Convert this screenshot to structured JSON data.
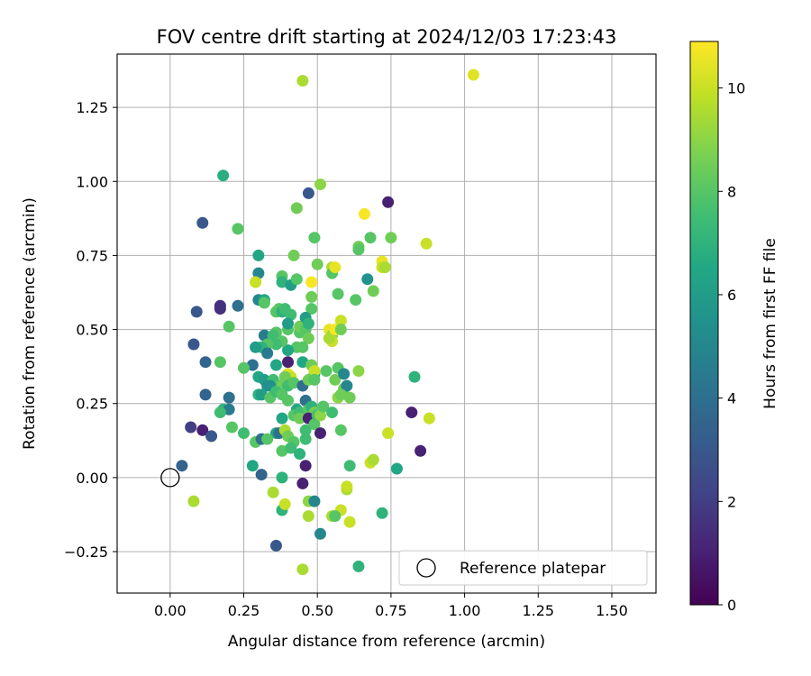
{
  "chart_data": {
    "type": "scatter",
    "title": "FOV centre drift starting at 2024/12/03 17:23:43",
    "xlabel": "Angular distance from reference (arcmin)",
    "ylabel": "Rotation from reference (arcmin)",
    "xlim": [
      -0.18,
      1.65
    ],
    "ylim": [
      -0.39,
      1.43
    ],
    "xticks": [
      0.0,
      0.25,
      0.5,
      0.75,
      1.0,
      1.25,
      1.5
    ],
    "xtick_labels": [
      "0.00",
      "0.25",
      "0.50",
      "0.75",
      "1.00",
      "1.25",
      "1.50"
    ],
    "yticks": [
      -0.25,
      0.0,
      0.25,
      0.5,
      0.75,
      1.0,
      1.25
    ],
    "ytick_labels": [
      "−0.25",
      "0.00",
      "0.25",
      "0.50",
      "0.75",
      "1.00",
      "1.25"
    ],
    "grid": true,
    "legend": {
      "placement": "lower-right",
      "entries": [
        "Reference platepar"
      ]
    },
    "reference_point": {
      "x": 0.0,
      "y": 0.0
    },
    "colorbar": {
      "label": "Hours from first FF file",
      "colormap": "viridis",
      "range": [
        0,
        10.9
      ],
      "ticks": [
        0,
        2,
        4,
        6,
        8,
        10
      ],
      "tick_labels": [
        "0",
        "2",
        "4",
        "6",
        "8",
        "10"
      ]
    },
    "series": [
      {
        "marker": "filled-circle",
        "points": [
          [
            0.45,
            1.34,
            9.5
          ],
          [
            1.03,
            1.36,
            10.4
          ],
          [
            0.18,
            1.02,
            6.8
          ],
          [
            0.47,
            0.96,
            3.0
          ],
          [
            0.51,
            0.99,
            9.0
          ],
          [
            0.74,
            0.93,
            1.0
          ],
          [
            0.43,
            0.91,
            8.5
          ],
          [
            0.11,
            0.86,
            3.0
          ],
          [
            0.23,
            0.84,
            8.0
          ],
          [
            0.66,
            0.89,
            10.8
          ],
          [
            0.3,
            0.75,
            6.5
          ],
          [
            0.42,
            0.75,
            8.5
          ],
          [
            0.49,
            0.81,
            8.0
          ],
          [
            0.64,
            0.78,
            8.5
          ],
          [
            0.64,
            0.77,
            8.0
          ],
          [
            0.68,
            0.81,
            8.0
          ],
          [
            0.75,
            0.81,
            8.5
          ],
          [
            0.87,
            0.79,
            10.0
          ],
          [
            0.3,
            0.69,
            5.0
          ],
          [
            0.38,
            0.68,
            8.0
          ],
          [
            0.38,
            0.66,
            7.0
          ],
          [
            0.41,
            0.65,
            6.0
          ],
          [
            0.43,
            0.67,
            8.0
          ],
          [
            0.29,
            0.66,
            10.0
          ],
          [
            0.48,
            0.66,
            10.8
          ],
          [
            0.5,
            0.72,
            8.5
          ],
          [
            0.55,
            0.71,
            9.5
          ],
          [
            0.55,
            0.69,
            8.0
          ],
          [
            0.56,
            0.71,
            10.5
          ],
          [
            0.72,
            0.73,
            10.5
          ],
          [
            0.72,
            0.71,
            10.0
          ],
          [
            0.73,
            0.71,
            9.5
          ],
          [
            0.67,
            0.67,
            5.5
          ],
          [
            0.69,
            0.63,
            8.5
          ],
          [
            0.17,
            0.58,
            1.5
          ],
          [
            0.17,
            0.57,
            1.5
          ],
          [
            0.09,
            0.56,
            3.0
          ],
          [
            0.23,
            0.58,
            4.0
          ],
          [
            0.3,
            0.6,
            5.0
          ],
          [
            0.32,
            0.6,
            6.5
          ],
          [
            0.32,
            0.59,
            8.0
          ],
          [
            0.36,
            0.56,
            8.0
          ],
          [
            0.37,
            0.57,
            8.0
          ],
          [
            0.38,
            0.56,
            7.0
          ],
          [
            0.39,
            0.57,
            7.5
          ],
          [
            0.41,
            0.55,
            7.5
          ],
          [
            0.48,
            0.57,
            8.0
          ],
          [
            0.48,
            0.61,
            8.5
          ],
          [
            0.57,
            0.62,
            8.0
          ],
          [
            0.63,
            0.6,
            8.0
          ],
          [
            0.2,
            0.51,
            8.0
          ],
          [
            0.08,
            0.45,
            3.0
          ],
          [
            0.36,
            0.49,
            8.0
          ],
          [
            0.32,
            0.48,
            4.5
          ],
          [
            0.35,
            0.48,
            7.5
          ],
          [
            0.4,
            0.5,
            8.0
          ],
          [
            0.4,
            0.52,
            6.0
          ],
          [
            0.44,
            0.49,
            8.0
          ],
          [
            0.44,
            0.51,
            8.5
          ],
          [
            0.46,
            0.5,
            8.0
          ],
          [
            0.46,
            0.54,
            6.0
          ],
          [
            0.47,
            0.52,
            7.0
          ],
          [
            0.54,
            0.5,
            10.5
          ],
          [
            0.55,
            0.48,
            9.0
          ],
          [
            0.55,
            0.46,
            10.0
          ],
          [
            0.54,
            0.47,
            9.5
          ],
          [
            0.56,
            0.5,
            10.8
          ],
          [
            0.58,
            0.53,
            10.0
          ],
          [
            0.58,
            0.5,
            8.5
          ],
          [
            0.47,
            0.47,
            8.5
          ],
          [
            0.45,
            0.44,
            8.0
          ],
          [
            0.43,
            0.44,
            8.0
          ],
          [
            0.4,
            0.43,
            6.5
          ],
          [
            0.38,
            0.46,
            8.0
          ],
          [
            0.36,
            0.45,
            7.5
          ],
          [
            0.33,
            0.45,
            8.0
          ],
          [
            0.31,
            0.44,
            7.0
          ],
          [
            0.29,
            0.44,
            6.0
          ],
          [
            0.33,
            0.42,
            4.5
          ],
          [
            0.12,
            0.39,
            3.5
          ],
          [
            0.17,
            0.39,
            8.0
          ],
          [
            0.28,
            0.38,
            4.0
          ],
          [
            0.25,
            0.37,
            8.0
          ],
          [
            0.36,
            0.38,
            6.5
          ],
          [
            0.4,
            0.39,
            1.0
          ],
          [
            0.45,
            0.39,
            6.5
          ],
          [
            0.48,
            0.38,
            8.5
          ],
          [
            0.49,
            0.35,
            6.5
          ],
          [
            0.49,
            0.36,
            10.0
          ],
          [
            0.4,
            0.35,
            10.5
          ],
          [
            0.41,
            0.34,
            10.0
          ],
          [
            0.39,
            0.34,
            8.5
          ],
          [
            0.3,
            0.34,
            6.5
          ],
          [
            0.32,
            0.33,
            6.0
          ],
          [
            0.33,
            0.31,
            5.5
          ],
          [
            0.35,
            0.33,
            7.5
          ],
          [
            0.37,
            0.31,
            8.0
          ],
          [
            0.38,
            0.31,
            8.5
          ],
          [
            0.4,
            0.31,
            7.5
          ],
          [
            0.42,
            0.32,
            8.0
          ],
          [
            0.45,
            0.31,
            4.0
          ],
          [
            0.47,
            0.33,
            8.5
          ],
          [
            0.49,
            0.33,
            8.0
          ],
          [
            0.53,
            0.36,
            8.0
          ],
          [
            0.56,
            0.33,
            8.5
          ],
          [
            0.57,
            0.37,
            8.0
          ],
          [
            0.59,
            0.35,
            5.0
          ],
          [
            0.59,
            0.3,
            8.5
          ],
          [
            0.6,
            0.31,
            5.0
          ],
          [
            0.61,
            0.27,
            8.5
          ],
          [
            0.64,
            0.36,
            9.0
          ],
          [
            0.57,
            0.27,
            9.0
          ],
          [
            0.58,
            0.28,
            8.5
          ],
          [
            0.83,
            0.34,
            7.0
          ],
          [
            0.12,
            0.28,
            3.5
          ],
          [
            0.2,
            0.27,
            4.0
          ],
          [
            0.18,
            0.23,
            7.0
          ],
          [
            0.2,
            0.23,
            4.5
          ],
          [
            0.17,
            0.22,
            7.5
          ],
          [
            0.21,
            0.17,
            8.0
          ],
          [
            0.25,
            0.15,
            7.5
          ],
          [
            0.3,
            0.28,
            7.0
          ],
          [
            0.31,
            0.28,
            6.0
          ],
          [
            0.34,
            0.27,
            8.0
          ],
          [
            0.34,
            0.31,
            5.5
          ],
          [
            0.36,
            0.29,
            7.5
          ],
          [
            0.38,
            0.28,
            8.0
          ],
          [
            0.4,
            0.26,
            8.0
          ],
          [
            0.43,
            0.23,
            6.5
          ],
          [
            0.42,
            0.21,
            8.0
          ],
          [
            0.44,
            0.22,
            7.5
          ],
          [
            0.44,
            0.2,
            8.5
          ],
          [
            0.46,
            0.26,
            4.0
          ],
          [
            0.47,
            0.23,
            8.0
          ],
          [
            0.48,
            0.24,
            7.0
          ],
          [
            0.49,
            0.22,
            8.5
          ],
          [
            0.47,
            0.2,
            1.0
          ],
          [
            0.49,
            0.18,
            8.0
          ],
          [
            0.5,
            0.21,
            7.5
          ],
          [
            0.51,
            0.21,
            9.0
          ],
          [
            0.52,
            0.24,
            8.0
          ],
          [
            0.51,
            0.15,
            1.0
          ],
          [
            0.55,
            0.22,
            7.5
          ],
          [
            0.58,
            0.16,
            8.0
          ],
          [
            0.38,
            0.2,
            6.5
          ],
          [
            0.36,
            0.15,
            6.5
          ],
          [
            0.37,
            0.15,
            4.0
          ],
          [
            0.39,
            0.16,
            9.5
          ],
          [
            0.4,
            0.14,
            8.5
          ],
          [
            0.42,
            0.12,
            8.0
          ],
          [
            0.46,
            0.16,
            7.5
          ],
          [
            0.46,
            0.13,
            7.5
          ],
          [
            0.07,
            0.17,
            2.0
          ],
          [
            0.11,
            0.16,
            1.0
          ],
          [
            0.14,
            0.14,
            3.0
          ],
          [
            0.29,
            0.12,
            8.0
          ],
          [
            0.31,
            0.13,
            4.0
          ],
          [
            0.33,
            0.13,
            8.0
          ],
          [
            0.38,
            0.09,
            8.0
          ],
          [
            0.41,
            0.1,
            7.5
          ],
          [
            0.44,
            0.08,
            7.0
          ],
          [
            0.46,
            0.04,
            1.0
          ],
          [
            0.61,
            0.04,
            7.5
          ],
          [
            0.68,
            0.05,
            10.0
          ],
          [
            0.69,
            0.06,
            9.5
          ],
          [
            0.74,
            0.15,
            10.0
          ],
          [
            0.77,
            0.03,
            6.5
          ],
          [
            0.85,
            0.09,
            1.0
          ],
          [
            0.82,
            0.22,
            1.0
          ],
          [
            0.88,
            0.2,
            10.0
          ],
          [
            0.04,
            0.04,
            3.5
          ],
          [
            0.28,
            0.04,
            6.5
          ],
          [
            0.31,
            0.01,
            3.5
          ],
          [
            0.38,
            0.0,
            7.0
          ],
          [
            0.08,
            -0.08,
            9.5
          ],
          [
            0.35,
            -0.05,
            9.5
          ],
          [
            0.38,
            -0.11,
            7.0
          ],
          [
            0.39,
            -0.09,
            10.0
          ],
          [
            0.45,
            -0.02,
            1.0
          ],
          [
            0.47,
            -0.08,
            9.0
          ],
          [
            0.49,
            -0.08,
            5.0
          ],
          [
            0.47,
            -0.13,
            9.5
          ],
          [
            0.55,
            -0.13,
            9.5
          ],
          [
            0.58,
            -0.11,
            10.0
          ],
          [
            0.56,
            -0.13,
            8.0
          ],
          [
            0.6,
            -0.04,
            9.5
          ],
          [
            0.6,
            -0.03,
            10.0
          ],
          [
            0.61,
            -0.15,
            10.0
          ],
          [
            0.72,
            -0.12,
            7.0
          ],
          [
            0.51,
            -0.19,
            5.0
          ],
          [
            0.36,
            -0.23,
            3.0
          ],
          [
            0.45,
            -0.31,
            9.5
          ],
          [
            0.64,
            -0.3,
            7.0
          ]
        ]
      }
    ]
  }
}
